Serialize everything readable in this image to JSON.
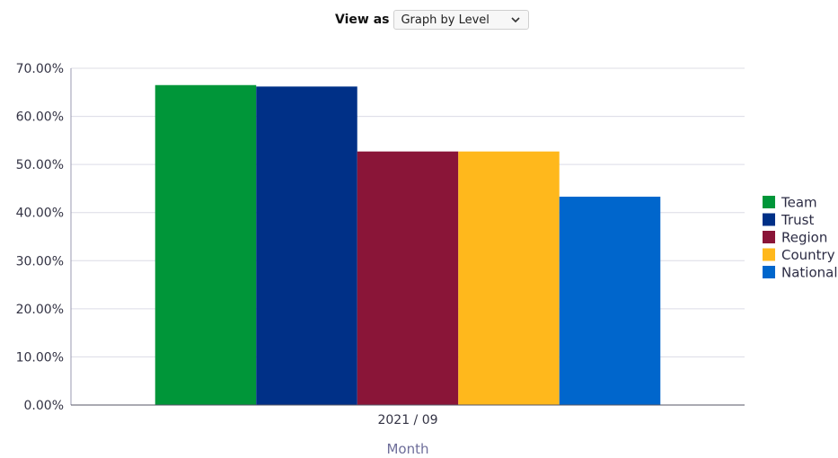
{
  "toolbar": {
    "view_as_label": "View as",
    "view_select_value": "Graph by Level",
    "chevron_icon": "chevron-down-icon"
  },
  "chart_data": {
    "type": "bar",
    "categories": [
      "2021 / 09"
    ],
    "series": [
      {
        "name": "Team",
        "values": [
          66.5
        ],
        "color": "#009639"
      },
      {
        "name": "Trust",
        "values": [
          66.2
        ],
        "color": "#003087"
      },
      {
        "name": "Region",
        "values": [
          52.7
        ],
        "color": "#8a1538"
      },
      {
        "name": "Country",
        "values": [
          52.7
        ],
        "color": "#ffb81c"
      },
      {
        "name": "National",
        "values": [
          43.3
        ],
        "color": "#0066cc"
      }
    ],
    "title": "",
    "xlabel": "Month",
    "ylabel": "",
    "ylim": [
      0,
      70
    ],
    "yticks": [
      "0.00%",
      "10.00%",
      "20.00%",
      "30.00%",
      "40.00%",
      "50.00%",
      "60.00%",
      "70.00%"
    ],
    "grid": true,
    "legend_position": "right"
  }
}
